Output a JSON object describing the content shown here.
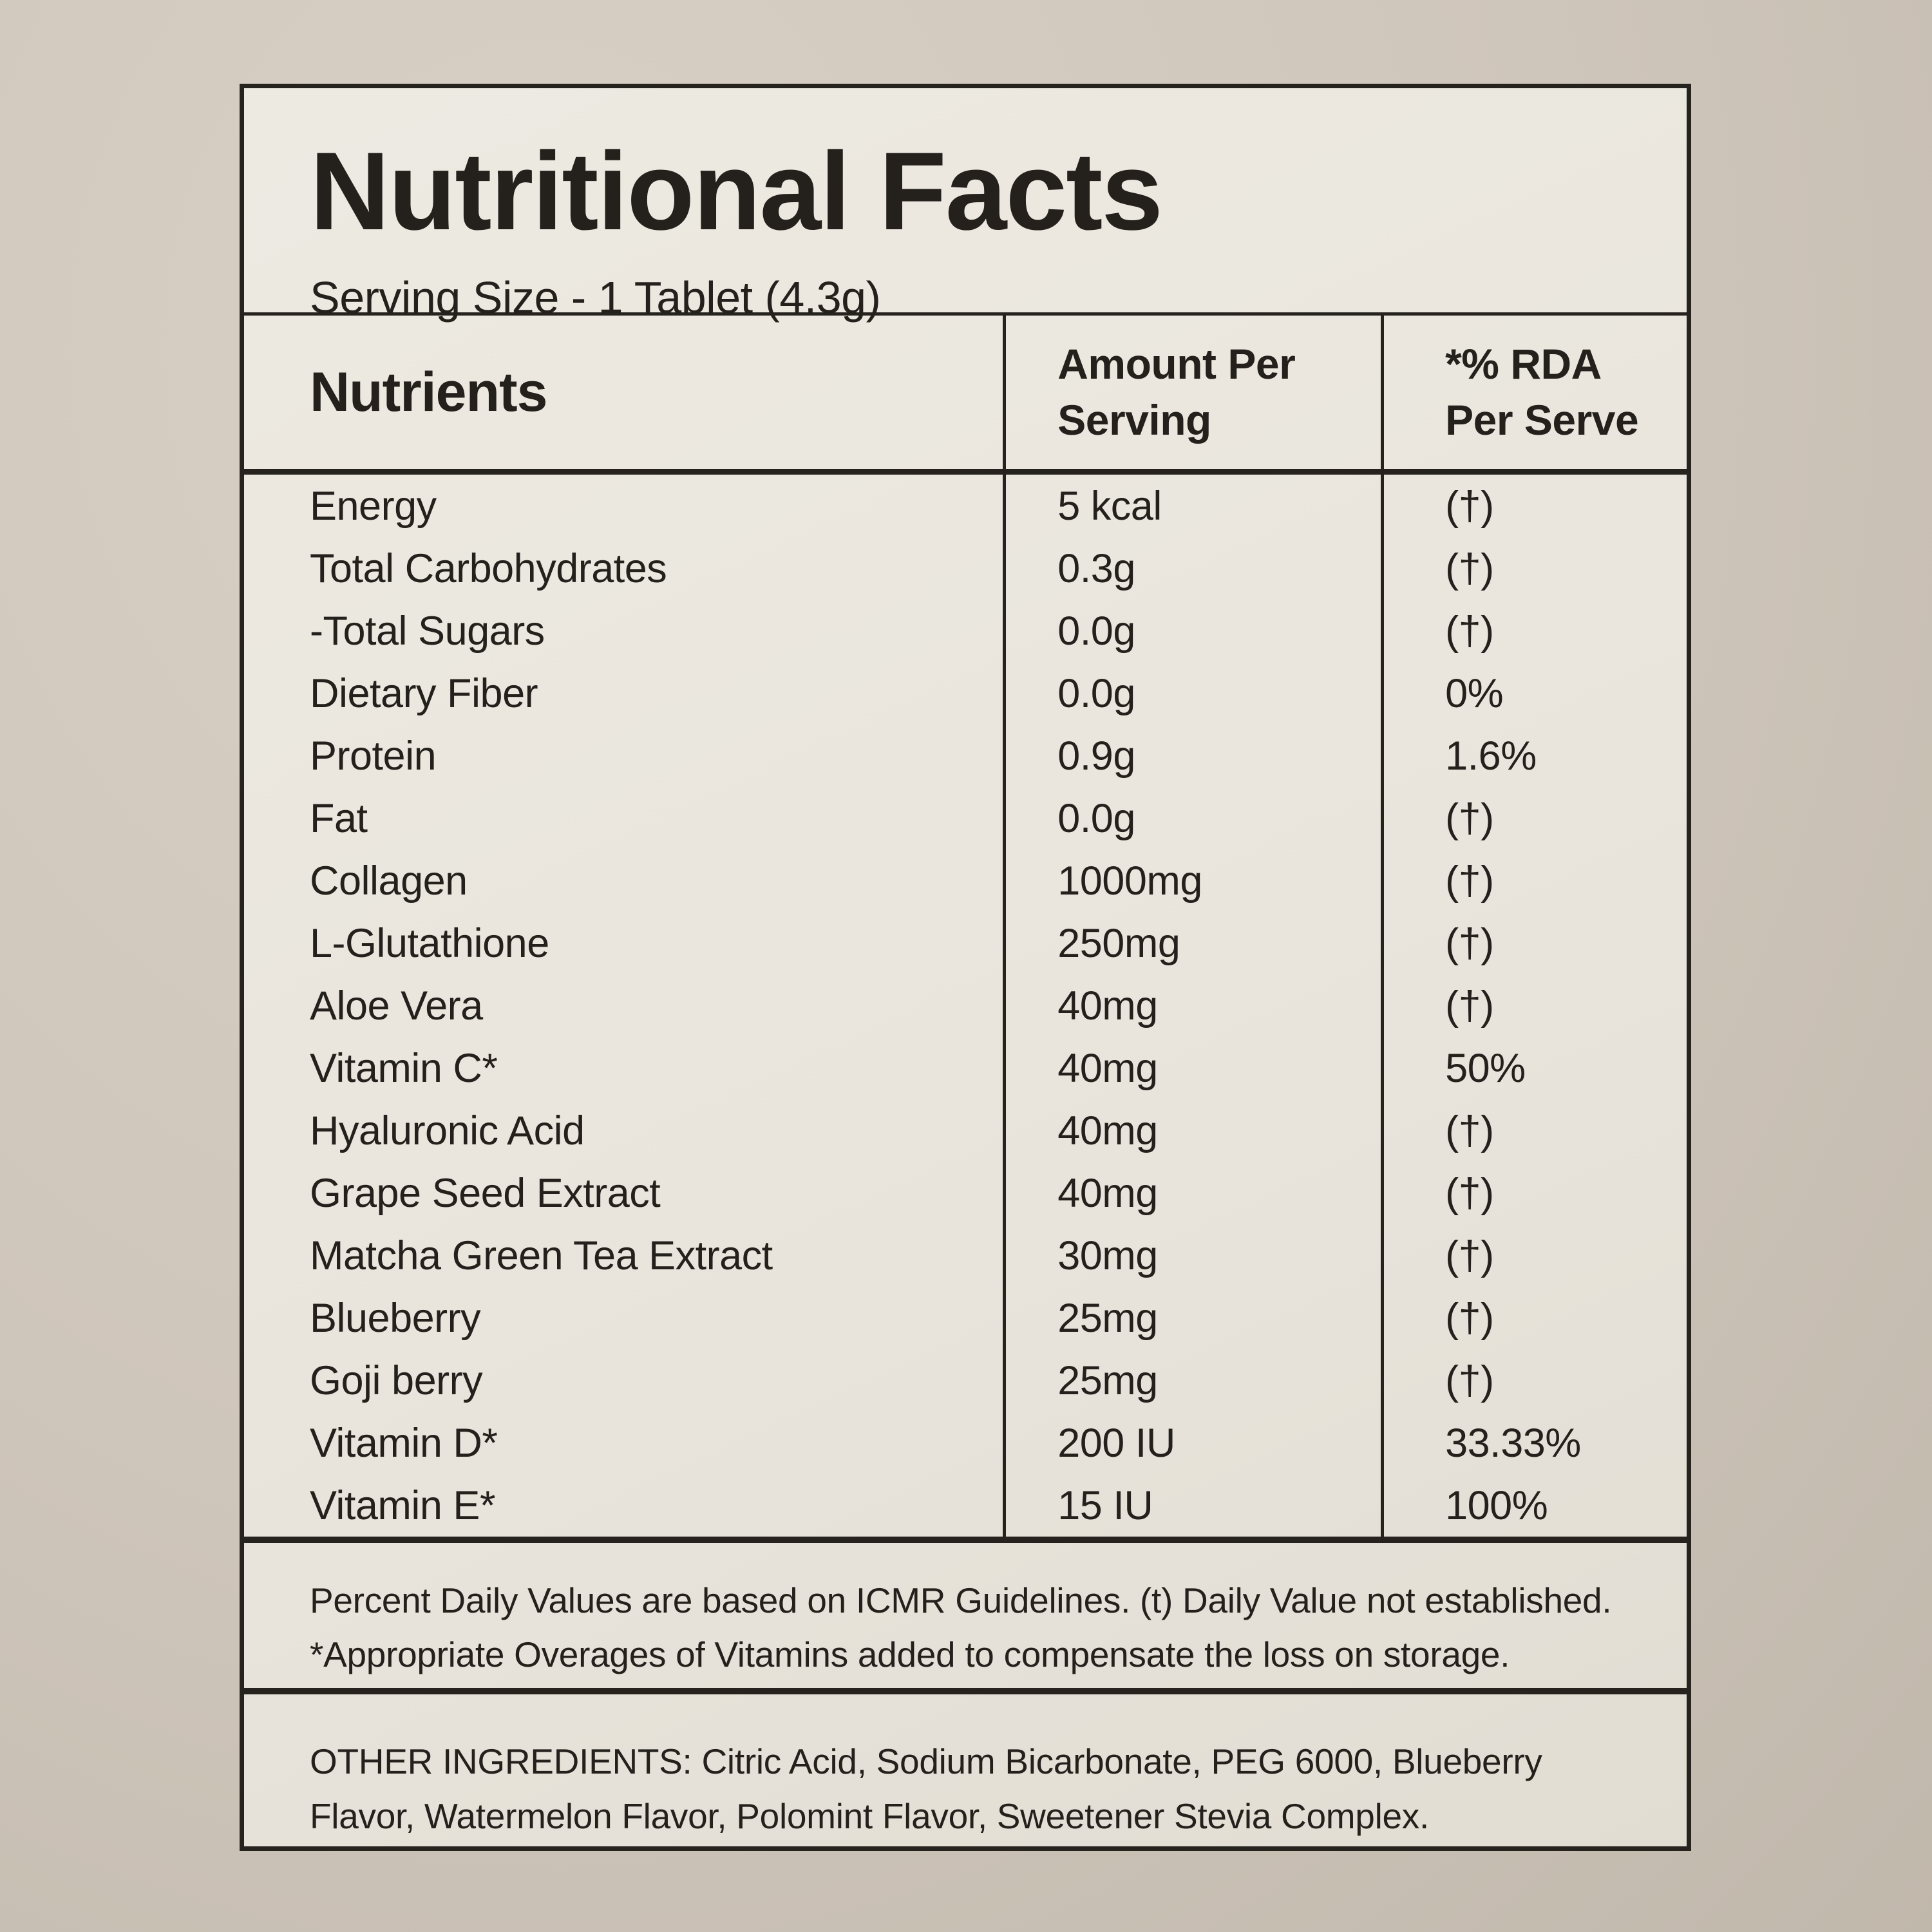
{
  "colors": {
    "page_background": "#cfc6bb",
    "label_background": "#e9e5dd",
    "ink": "#26231f"
  },
  "label": {
    "title": "Nutritional Facts",
    "serving_size": "Serving Size - 1 Tablet (4.3g)"
  },
  "table": {
    "headers": {
      "nutrients": "Nutrients",
      "amount": "Amount Per Serving",
      "rda": "*% RDA Per Serve"
    },
    "rows": [
      {
        "name": "Energy",
        "amount": "5 kcal",
        "rda": "(†)"
      },
      {
        "name": "Total Carbohydrates",
        "amount": "0.3g",
        "rda": "(†)"
      },
      {
        "name": "-Total Sugars",
        "amount": "0.0g",
        "rda": "(†)"
      },
      {
        "name": "Dietary Fiber",
        "amount": "0.0g",
        "rda": "0%"
      },
      {
        "name": "Protein",
        "amount": "0.9g",
        "rda": "1.6%"
      },
      {
        "name": "Fat",
        "amount": "0.0g",
        "rda": "(†)"
      },
      {
        "name": "Collagen",
        "amount": "1000mg",
        "rda": "(†)"
      },
      {
        "name": "L-Glutathione",
        "amount": "250mg",
        "rda": "(†)"
      },
      {
        "name": "Aloe Vera",
        "amount": "40mg",
        "rda": "(†)"
      },
      {
        "name": "Vitamin C*",
        "amount": "40mg",
        "rda": "50%"
      },
      {
        "name": "Hyaluronic Acid",
        "amount": "40mg",
        "rda": "(†)"
      },
      {
        "name": "Grape Seed Extract",
        "amount": "40mg",
        "rda": "(†)"
      },
      {
        "name": "Matcha Green Tea Extract",
        "amount": "30mg",
        "rda": "(†)"
      },
      {
        "name": "Blueberry",
        "amount": "25mg",
        "rda": "(†)"
      },
      {
        "name": "Goji berry",
        "amount": "25mg",
        "rda": "(†)"
      },
      {
        "name": "Vitamin D*",
        "amount": "200 IU",
        "rda": "33.33%"
      },
      {
        "name": "Vitamin E*",
        "amount": "15 IU",
        "rda": "100%"
      }
    ]
  },
  "footnotes": {
    "line1": "Percent Daily Values are based on ICMR Guidelines. (t) Daily Value not established.",
    "line2": "*Appropriate Overages of Vitamins added to compensate the loss on storage."
  },
  "other_ingredients": {
    "line1": "OTHER INGREDIENTS: Citric Acid, Sodium Bicarbonate, PEG 6000, Blueberry",
    "line2": "Flavor, Watermelon Flavor, Polomint Flavor, Sweetener Stevia Complex."
  }
}
